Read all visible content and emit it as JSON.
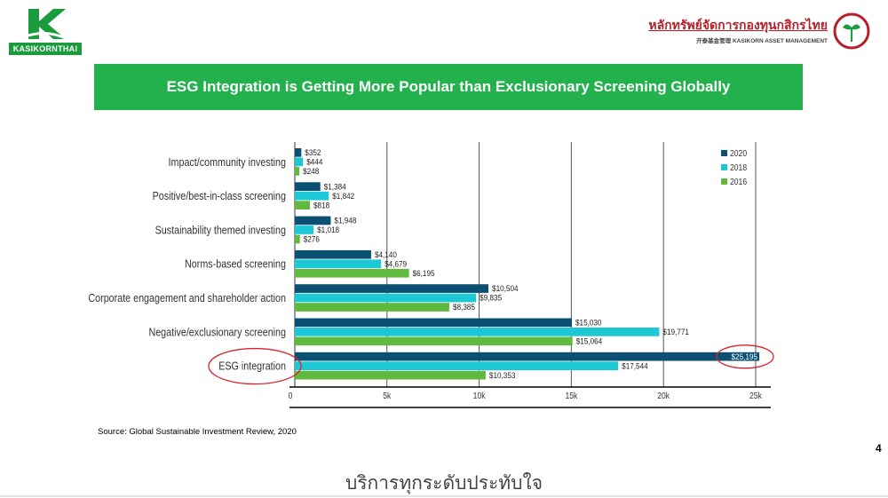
{
  "header": {
    "left_logo_text": "KASIKORNTHAI",
    "right_logo_thai": "หลักทรัพย์จัดการกองทุนกสิกรไทย",
    "right_logo_en": "开泰基金管理 KASIKORN ASSET MANAGEMENT",
    "colors": {
      "brand_green": "#1a9c3e",
      "brand_red": "#b5202a"
    }
  },
  "title": "ESG Integration is Getting More Popular than Exclusionary Screening Globally",
  "source": "Source: Global Sustainable Investment Review, 2020",
  "page_number": "4",
  "footer": {
    "slogan": "บริการทุกระดับประทับใจ"
  },
  "chart_data": {
    "type": "bar",
    "orientation": "horizontal",
    "categories": [
      "Impact/community investing",
      "Positive/best-in-class screening",
      "Sustainability themed investing",
      "Norms-based screening",
      "Corporate engagement and shareholder action",
      "Negative/exclusionary screening",
      "ESG integration"
    ],
    "series": [
      {
        "name": "2020",
        "color": "#0b4f73",
        "values": [
          352,
          1384,
          1948,
          4140,
          10504,
          15030,
          25195
        ],
        "labels": [
          "$352",
          "$1,384",
          "$1,948",
          "$4,140",
          "$10,504",
          "$15,030",
          "$25,195"
        ]
      },
      {
        "name": "2018",
        "color": "#1cc7d6",
        "values": [
          444,
          1842,
          1018,
          4679,
          9835,
          19771,
          17544
        ],
        "labels": [
          "$444",
          "$1,842",
          "$1,018",
          "$4,679",
          "$9,835",
          "$19,771",
          "$17,544"
        ]
      },
      {
        "name": "2016",
        "color": "#62b93f",
        "values": [
          248,
          818,
          276,
          6195,
          8385,
          15064,
          10353
        ],
        "labels": [
          "$248",
          "$818",
          "$276",
          "$6,195",
          "$8,385",
          "$15,064",
          "$10,353"
        ]
      }
    ],
    "xlim": [
      0,
      25195
    ],
    "x_ticks": [
      0,
      5000,
      10000,
      15000,
      20000,
      25000
    ],
    "x_tick_labels": [
      "0",
      "5k",
      "10k",
      "15k",
      "20k",
      "25k"
    ],
    "legend": "top-right",
    "grid": "vertical",
    "highlighted": [
      "ESG integration",
      "$25,195"
    ],
    "highlight_color": "#d9232d"
  }
}
